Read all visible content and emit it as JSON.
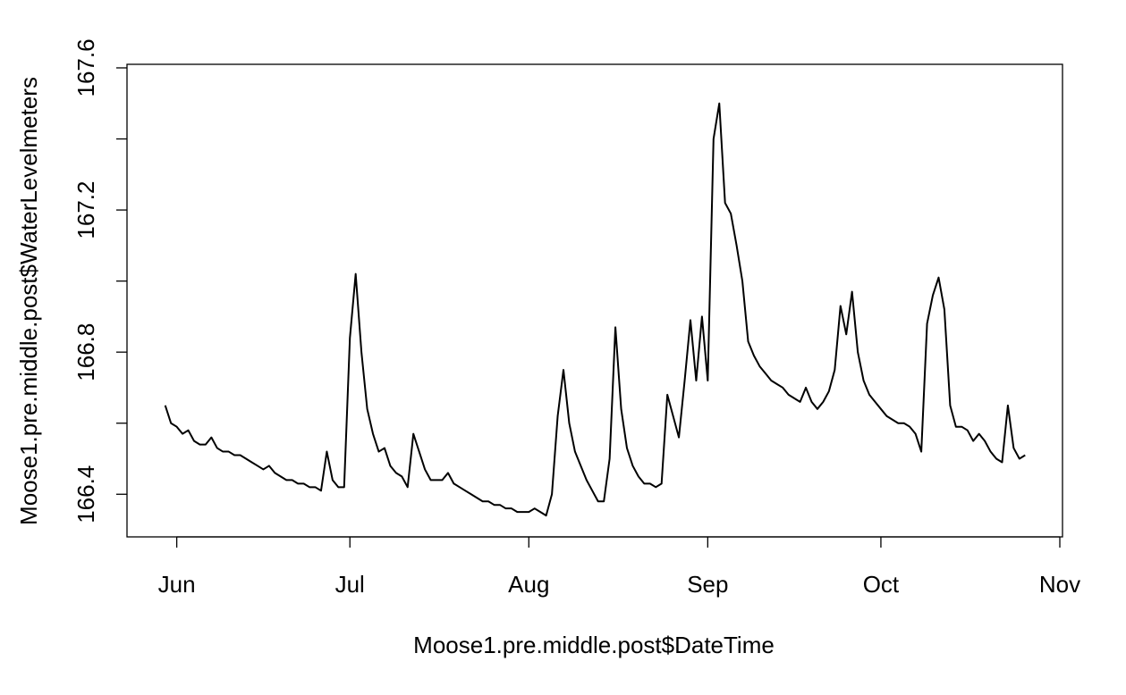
{
  "chart_data": {
    "type": "line",
    "x_label": "Moose1.pre.middle.post$DateTime",
    "y_label": "Moose1.pre.middle.post$WaterLevelmeters",
    "categories": [
      null,
      null,
      null,
      null,
      null,
      null,
      null,
      null,
      "Jun",
      null,
      null,
      null,
      null,
      null,
      null,
      null,
      null,
      null,
      null,
      null,
      null,
      null,
      null,
      null,
      null,
      null,
      null,
      null,
      null,
      null,
      null,
      null,
      null,
      null,
      null,
      null,
      null,
      null,
      "Jul",
      null,
      null,
      null,
      null,
      null,
      null,
      null,
      null,
      null,
      null,
      null,
      null,
      null,
      null,
      null,
      null,
      null,
      null,
      null,
      null,
      null,
      null,
      null,
      null,
      null,
      null,
      null,
      null,
      null,
      null,
      "Aug",
      null,
      null,
      null,
      null,
      null,
      null,
      null,
      null,
      null,
      null,
      null,
      null,
      null,
      null,
      null,
      null,
      null,
      null,
      null,
      null,
      null,
      null,
      null,
      null,
      null,
      null,
      null,
      null,
      null,
      null,
      "Sep",
      null,
      null,
      null,
      null,
      null,
      null,
      null,
      null,
      null,
      null,
      null,
      null,
      null,
      null,
      null,
      null,
      null,
      null,
      null,
      null,
      null,
      null,
      null,
      null,
      null,
      null,
      null,
      null,
      null,
      "Oct",
      null,
      null,
      null,
      null,
      null,
      null,
      null,
      null,
      null,
      null,
      null,
      null,
      null,
      null,
      null,
      null,
      null,
      null,
      null,
      null,
      null,
      null,
      null,
      null,
      null,
      null,
      null,
      null,
      null,
      null,
      "Nov"
    ],
    "values": [
      null,
      null,
      null,
      null,
      null,
      null,
      166.65,
      166.6,
      166.59,
      166.57,
      166.58,
      166.55,
      166.54,
      166.54,
      166.56,
      166.53,
      166.52,
      166.52,
      166.51,
      166.51,
      166.5,
      166.49,
      166.48,
      166.47,
      166.48,
      166.46,
      166.45,
      166.44,
      166.44,
      166.43,
      166.43,
      166.42,
      166.42,
      166.41,
      166.52,
      166.44,
      166.42,
      166.42,
      166.84,
      167.02,
      166.8,
      166.64,
      166.57,
      166.52,
      166.53,
      166.48,
      166.46,
      166.45,
      166.42,
      166.57,
      166.52,
      166.47,
      166.44,
      166.44,
      166.44,
      166.46,
      166.43,
      166.42,
      166.41,
      166.4,
      166.39,
      166.38,
      166.38,
      166.37,
      166.37,
      166.36,
      166.36,
      166.35,
      166.35,
      166.35,
      166.36,
      166.35,
      166.34,
      166.4,
      166.62,
      166.75,
      166.6,
      166.52,
      166.48,
      166.44,
      166.41,
      166.38,
      166.38,
      166.5,
      166.87,
      166.64,
      166.53,
      166.48,
      166.45,
      166.43,
      166.43,
      166.42,
      166.43,
      166.68,
      166.62,
      166.56,
      166.72,
      166.89,
      166.72,
      166.9,
      166.72,
      167.4,
      167.5,
      167.22,
      167.19,
      167.1,
      167.0,
      166.83,
      166.79,
      166.76,
      166.74,
      166.72,
      166.71,
      166.7,
      166.68,
      166.67,
      166.66,
      166.7,
      166.66,
      166.64,
      166.66,
      166.69,
      166.75,
      166.93,
      166.85,
      166.97,
      166.8,
      166.72,
      166.68,
      166.66,
      166.64,
      166.62,
      166.61,
      166.6,
      166.6,
      166.59,
      166.57,
      166.52,
      166.88,
      166.96,
      167.01,
      166.92,
      166.65,
      166.59,
      166.59,
      166.58,
      166.55,
      166.57,
      166.55,
      166.52,
      166.5,
      166.49,
      166.65,
      166.53,
      166.5,
      166.51,
      null,
      null,
      null,
      null,
      null,
      null
    ],
    "color": "#000000",
    "ylim": [
      166.28,
      167.61
    ],
    "yticks": [
      166.4,
      {
        "value": 166.6,
        "label": null
      },
      166.8,
      {
        "value": 167.0,
        "label": null
      },
      167.2,
      {
        "value": 167.4,
        "label": null
      },
      167.6
    ]
  }
}
